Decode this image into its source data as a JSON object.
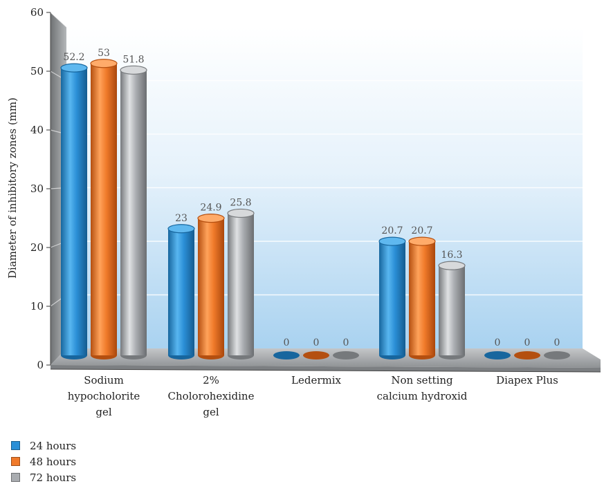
{
  "chart_data": {
    "type": "bar",
    "ylabel": "Diameter of inhibitory zones (mm)",
    "xlabel": "",
    "ylim": [
      0,
      60
    ],
    "yticks": [
      0,
      10,
      20,
      30,
      40,
      50,
      60
    ],
    "grid": true,
    "legend_position": "bottom-left",
    "categories": [
      [
        "Sodium",
        "hypocholorite",
        "gel"
      ],
      [
        "2%",
        "Cholorohexidine",
        "gel"
      ],
      [
        "Ledermix"
      ],
      [
        "Non setting",
        "calcium hydroxid"
      ],
      [
        "Diapex Plus"
      ]
    ],
    "series": [
      {
        "name": "24 hours",
        "color": "#2b8fd6",
        "values": [
          52.2,
          23,
          0,
          20.7,
          0
        ]
      },
      {
        "name": "48 hours",
        "color": "#f07a2a",
        "values": [
          53,
          24.9,
          0,
          20.7,
          0
        ]
      },
      {
        "name": "72 hours",
        "color": "#a9acb0",
        "values": [
          51.8,
          25.8,
          0,
          16.3,
          0
        ]
      }
    ]
  }
}
